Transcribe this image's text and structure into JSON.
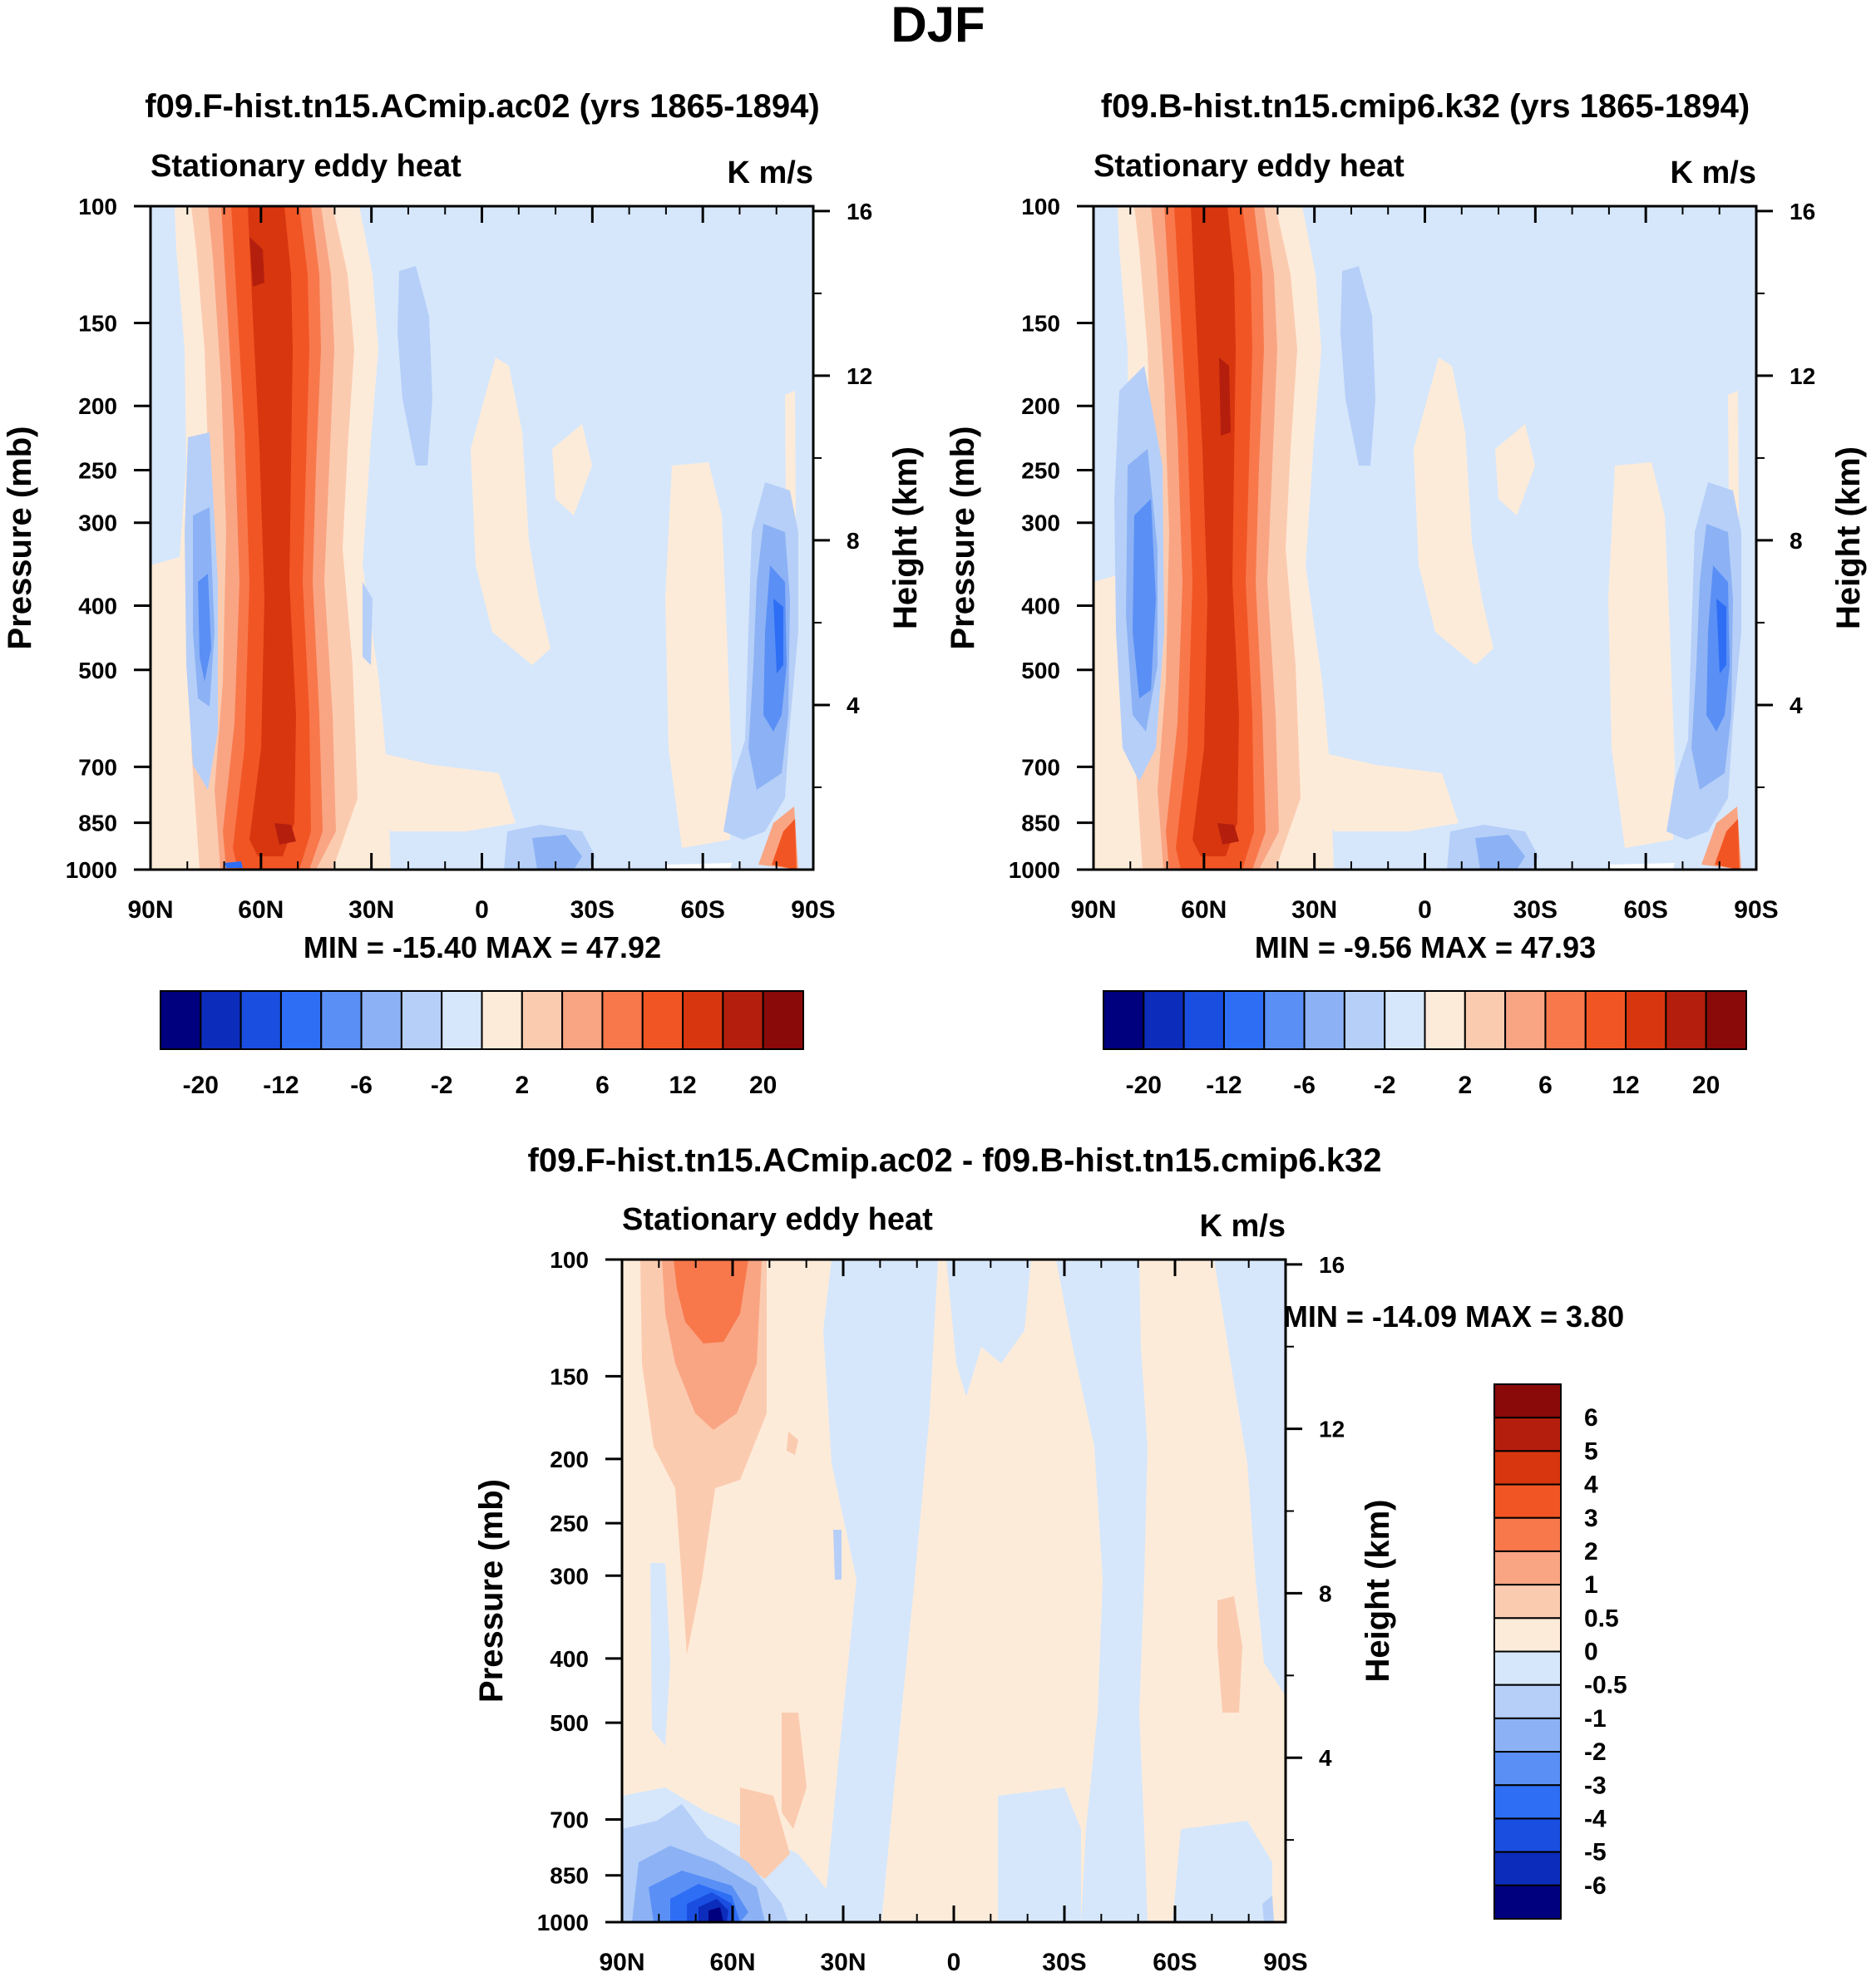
{
  "page": {
    "title": "DJF"
  },
  "chart_data": [
    {
      "type": "heatmap",
      "panel_title": "f09.F-hist.tn15.ACmip.ac02 (yrs 1865-1894)",
      "subtitle_left": "Stationary eddy heat",
      "subtitle_right": "K m/s",
      "ylabel": "Pressure (mb)",
      "ylabel_right": "Height (km)",
      "x_ticks": [
        "90N",
        "60N",
        "30N",
        "0",
        "30S",
        "60S",
        "90S"
      ],
      "y_ticks": [
        100,
        150,
        200,
        250,
        300,
        400,
        500,
        700,
        850,
        1000
      ],
      "y2_ticks": [
        16,
        12,
        8,
        4
      ],
      "ylim": [
        1000,
        100
      ],
      "xlim": [
        90,
        -90
      ],
      "stats": "MIN = -15.40  MAX =  47.92",
      "colorbar": {
        "orientation": "horizontal",
        "colors": [
          "#00007f",
          "#0c2cbb",
          "#1a4ee0",
          "#2d6ef5",
          "#5a8ff5",
          "#8cb2f5",
          "#b6cff8",
          "#d6e7fb",
          "#fdebd9",
          "#fbcbb0",
          "#f9a583",
          "#f8784c",
          "#f25524",
          "#d8360f",
          "#b41f0d",
          "#8a0a0a"
        ],
        "label_text": [
          "-20",
          "-12",
          "-6",
          "-2",
          "2",
          "6",
          "12",
          "20"
        ]
      }
    },
    {
      "type": "heatmap",
      "panel_title": "f09.B-hist.tn15.cmip6.k32 (yrs 1865-1894)",
      "subtitle_left": "Stationary eddy heat",
      "subtitle_right": "K m/s",
      "ylabel": "Pressure (mb)",
      "ylabel_right": "Height (km)",
      "x_ticks": [
        "90N",
        "60N",
        "30N",
        "0",
        "30S",
        "60S",
        "90S"
      ],
      "y_ticks": [
        100,
        150,
        200,
        250,
        300,
        400,
        500,
        700,
        850,
        1000
      ],
      "y2_ticks": [
        16,
        12,
        8,
        4
      ],
      "ylim": [
        1000,
        100
      ],
      "xlim": [
        90,
        -90
      ],
      "stats": "MIN =  -9.56  MAX =  47.93",
      "colorbar": {
        "orientation": "horizontal",
        "colors": [
          "#00007f",
          "#0c2cbb",
          "#1a4ee0",
          "#2d6ef5",
          "#5a8ff5",
          "#8cb2f5",
          "#b6cff8",
          "#d6e7fb",
          "#fdebd9",
          "#fbcbb0",
          "#f9a583",
          "#f8784c",
          "#f25524",
          "#d8360f",
          "#b41f0d",
          "#8a0a0a"
        ],
        "label_text": [
          "-20",
          "-12",
          "-6",
          "-2",
          "2",
          "6",
          "12",
          "20"
        ]
      }
    },
    {
      "type": "heatmap",
      "panel_title": "f09.F-hist.tn15.ACmip.ac02 - f09.B-hist.tn15.cmip6.k32",
      "subtitle_left": "Stationary eddy heat",
      "subtitle_right": "K m/s",
      "ylabel": "Pressure (mb)",
      "ylabel_right": "Height (km)",
      "x_ticks": [
        "90N",
        "60N",
        "30N",
        "0",
        "30S",
        "60S",
        "90S"
      ],
      "y_ticks": [
        100,
        150,
        200,
        250,
        300,
        400,
        500,
        700,
        850,
        1000
      ],
      "y2_ticks": [
        16,
        12,
        8,
        4
      ],
      "ylim": [
        1000,
        100
      ],
      "xlim": [
        90,
        -90
      ],
      "stats": "MIN = -14.09  MAX =   3.80",
      "colorbar": {
        "orientation": "vertical",
        "colors": [
          "#8a0a0a",
          "#b41f0d",
          "#d8360f",
          "#f25524",
          "#f8784c",
          "#f9a583",
          "#fbcbb0",
          "#fdebd9",
          "#d6e7fb",
          "#b6cff8",
          "#8cb2f5",
          "#5a8ff5",
          "#2d6ef5",
          "#1a4ee0",
          "#0c2cbb",
          "#00007f"
        ],
        "label_text": [
          "6",
          "5",
          "4",
          "3",
          "2",
          "1",
          "0.5",
          "0",
          "-0.5",
          "-1",
          "-2",
          "-3",
          "-4",
          "-5",
          "-6"
        ]
      }
    }
  ]
}
